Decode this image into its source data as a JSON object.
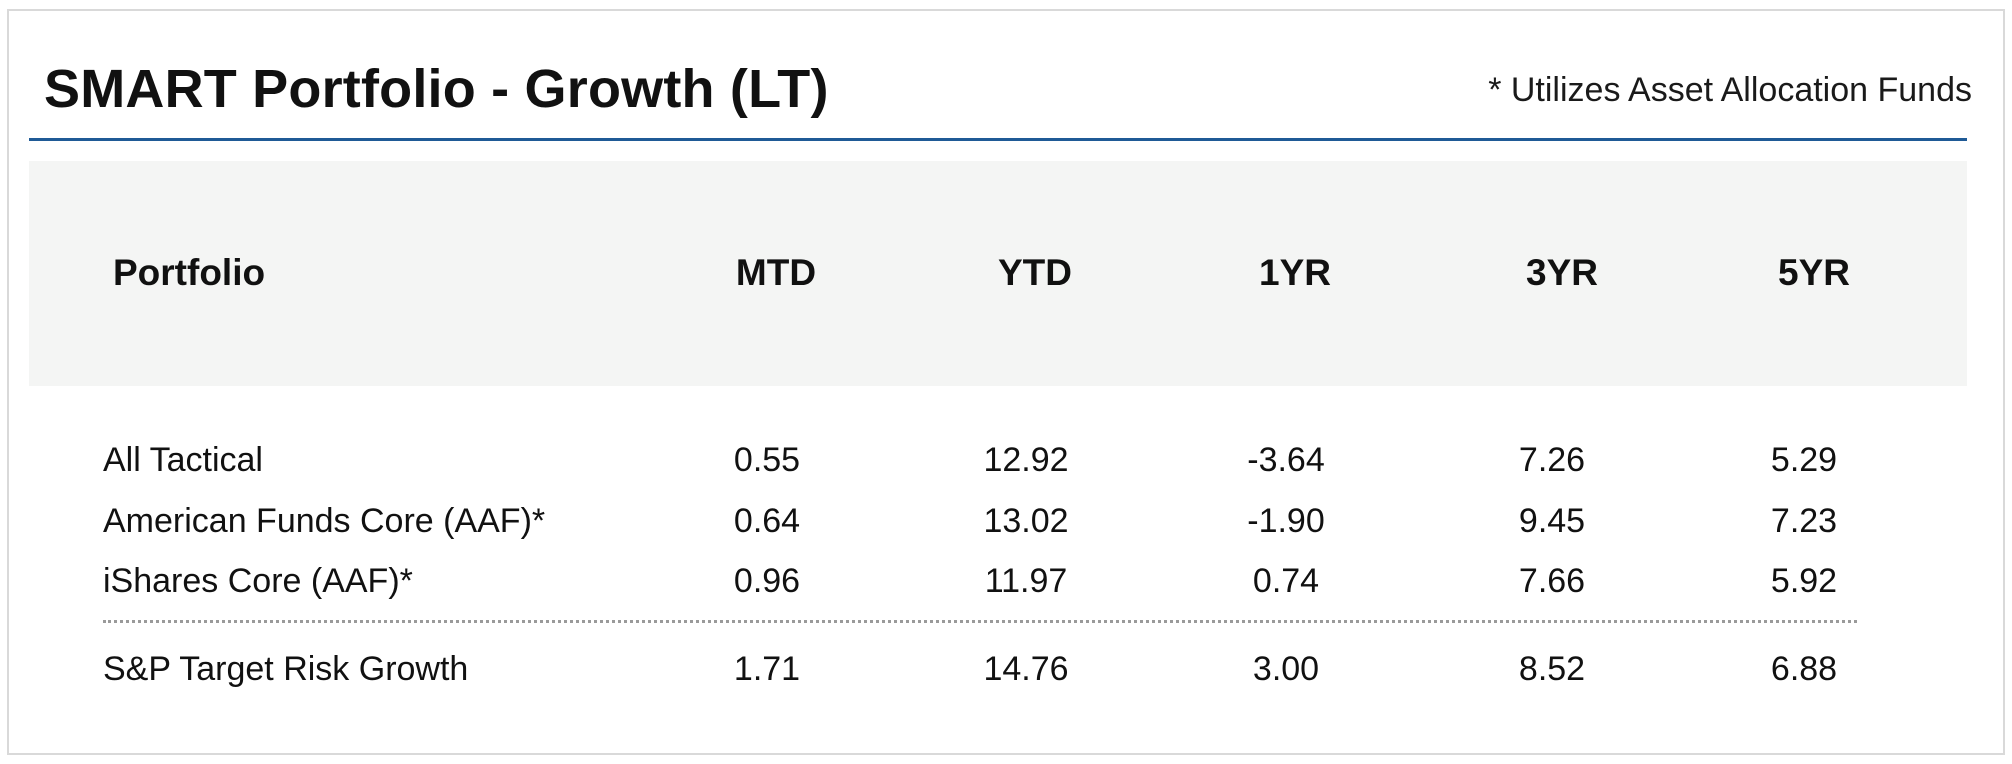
{
  "title": "SMART Portfolio - Growth (LT)",
  "note": "* Utilizes Asset Allocation Funds",
  "table": {
    "headers": [
      "Portfolio",
      "MTD",
      "YTD",
      "1YR",
      "3YR",
      "5YR"
    ],
    "rows": [
      {
        "name": "All Tactical",
        "mtd": "0.55",
        "ytd": "12.92",
        "yr1": "-3.64",
        "yr3": "7.26",
        "yr5": "5.29"
      },
      {
        "name": "American Funds Core (AAF)*",
        "mtd": "0.64",
        "ytd": "13.02",
        "yr1": "-1.90",
        "yr3": "9.45",
        "yr5": "7.23"
      },
      {
        "name": "iShares Core (AAF)*",
        "mtd": "0.96",
        "ytd": "11.97",
        "yr1": "0.74",
        "yr3": "7.66",
        "yr5": "5.92"
      }
    ],
    "benchmark": {
      "name": "S&P Target Risk Growth",
      "mtd": "1.71",
      "ytd": "14.76",
      "yr1": "3.00",
      "yr3": "8.52",
      "yr5": "6.88"
    }
  },
  "colors": {
    "rule": "#1f5a96",
    "header_band": "#f4f5f4",
    "border": "#d9d9d9"
  }
}
